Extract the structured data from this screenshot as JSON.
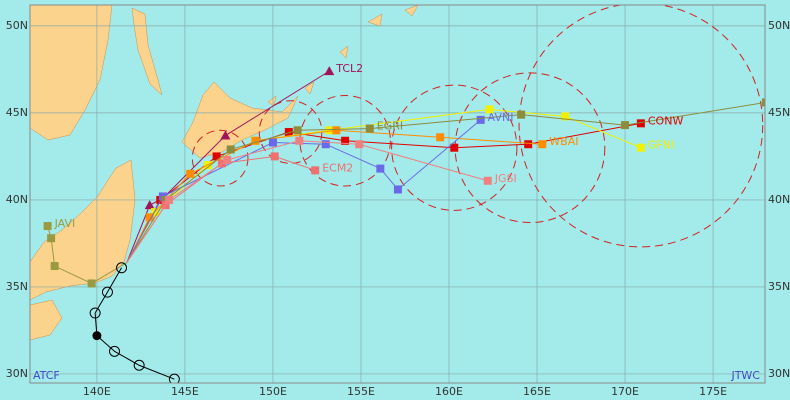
{
  "chart_data": {
    "type": "track-map",
    "corner_left": "ATCF",
    "corner_right": "JTWC",
    "xlim": [
      136.2,
      177.95
    ],
    "ylim": [
      29.48,
      51.2
    ],
    "xticks": [
      {
        "value": 140,
        "label": "140E"
      },
      {
        "value": 145,
        "label": "145E"
      },
      {
        "value": 150,
        "label": "150E"
      },
      {
        "value": 155,
        "label": "155E"
      },
      {
        "value": 160,
        "label": "160E"
      },
      {
        "value": 165,
        "label": "165E"
      },
      {
        "value": 170,
        "label": "170E"
      },
      {
        "value": 175,
        "label": "175E"
      }
    ],
    "yticks": [
      {
        "value": 30,
        "label": "30N"
      },
      {
        "value": 35,
        "label": "35N"
      },
      {
        "value": 40,
        "label": "40N"
      },
      {
        "value": 45,
        "label": "45N"
      },
      {
        "value": 50,
        "label": "50N"
      }
    ],
    "grid": true,
    "land_color": "#fcd38c",
    "sea_color": "#a3ebeb",
    "best_track": {
      "color": "#000000",
      "x": [
        144.4,
        142.4,
        141.0,
        140.0,
        139.9,
        140.6,
        141.4
      ],
      "y": [
        29.7,
        30.5,
        31.3,
        32.2,
        33.5,
        34.7,
        36.1
      ]
    },
    "circles": [
      {
        "x": 147.0,
        "y": 42.4,
        "r": 1.6
      },
      {
        "x": 151.0,
        "y": 43.9,
        "r": 1.8
      },
      {
        "x": 154.1,
        "y": 43.4,
        "r": 2.6
      },
      {
        "x": 160.3,
        "y": 43.0,
        "r": 3.6
      },
      {
        "x": 164.6,
        "y": 43.0,
        "r": 4.3
      },
      {
        "x": 170.9,
        "y": 44.3,
        "r": 7.0
      }
    ],
    "circle_color": "#d42020",
    "series": [
      {
        "name": "TCL2",
        "color": "#a0145a",
        "marker": "triangle",
        "x": [
          141.7,
          143.0,
          143.75,
          147.3,
          153.2
        ],
        "y": [
          36.4,
          39.7,
          40.1,
          43.7,
          47.4
        ]
      },
      {
        "name": "CONW",
        "color": "#e00000",
        "marker": "square",
        "x": [
          141.7,
          143.6,
          146.8,
          150.9,
          154.1,
          160.3,
          164.5,
          170.9
        ],
        "y": [
          36.4,
          40.0,
          42.5,
          43.9,
          43.4,
          43.0,
          43.2,
          44.4
        ]
      },
      {
        "name": "GFNI",
        "color": "#f0f000",
        "marker": "square",
        "x": [
          141.7,
          143.3,
          146.3,
          149.0,
          153.2,
          162.3,
          166.6,
          170.9
        ],
        "y": [
          36.4,
          39.3,
          42.0,
          43.4,
          44.0,
          45.2,
          44.8,
          43.0
        ]
      },
      {
        "name": "WBAI",
        "color": "#ff8c00",
        "marker": "square",
        "x": [
          141.7,
          143.0,
          145.3,
          149.0,
          153.6,
          159.5,
          165.3
        ],
        "y": [
          36.4,
          39.0,
          41.5,
          43.4,
          44.0,
          43.6,
          43.2
        ]
      },
      {
        "name": "AVNI",
        "color": "#6a6ae8",
        "marker": "square",
        "x": [
          141.7,
          143.75,
          150.0,
          153.0,
          156.1,
          157.1,
          161.8
        ],
        "y": [
          36.4,
          40.2,
          43.3,
          43.2,
          41.8,
          40.6,
          44.6
        ]
      },
      {
        "name": "EGRI",
        "color": "#8c8c3c",
        "marker": "square",
        "x": [
          141.7,
          143.9,
          147.6,
          151.4,
          155.5,
          164.1,
          170.0,
          178.0
        ],
        "y": [
          36.4,
          40.0,
          42.9,
          44.0,
          44.1,
          44.9,
          44.3,
          45.6
        ]
      },
      {
        "name": "ECM2",
        "color": "#f07070",
        "marker": "square",
        "x": [
          141.7,
          143.9,
          147.1,
          150.1,
          152.4
        ],
        "y": [
          36.4,
          39.7,
          42.1,
          42.5,
          41.7
        ]
      },
      {
        "name": "JGSI",
        "color": "#f08080",
        "marker": "square",
        "x": [
          141.7,
          144.1,
          147.4,
          151.5,
          154.9,
          162.2
        ],
        "y": [
          36.4,
          40.0,
          42.3,
          43.4,
          43.2,
          41.1
        ]
      },
      {
        "name": "JAVI",
        "color": "#9a9a40",
        "marker": "square",
        "x": [
          141.7,
          139.7,
          137.6,
          137.4,
          137.2
        ],
        "y": [
          36.4,
          35.2,
          36.2,
          37.8,
          38.5
        ]
      }
    ]
  }
}
